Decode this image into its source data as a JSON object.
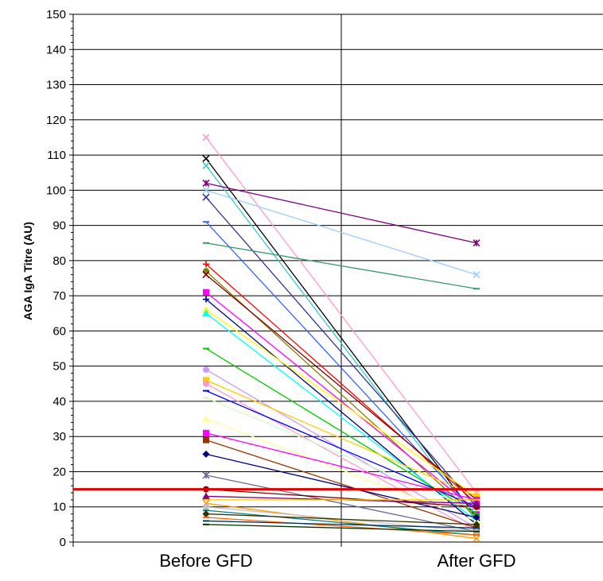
{
  "chart_data": {
    "type": "line",
    "title": "",
    "xlabel": "",
    "ylabel": "AGA IgA Titre (AU)",
    "categories": [
      "Before GFD",
      "After GFD"
    ],
    "ylim": [
      0,
      150
    ],
    "yticks": [
      0,
      10,
      20,
      30,
      40,
      50,
      60,
      70,
      80,
      90,
      100,
      110,
      120,
      130,
      140,
      150
    ],
    "grid": true,
    "legend": "none",
    "threshold": {
      "value": 15,
      "color": "#e00000"
    },
    "series": [
      {
        "values": [
          115,
          14
        ],
        "color": "#ff99cc",
        "marker": "x"
      },
      {
        "values": [
          109,
          7
        ],
        "color": "#000000",
        "marker": "x"
      },
      {
        "values": [
          107,
          6
        ],
        "color": "#33cccc",
        "marker": "x"
      },
      {
        "values": [
          102,
          85
        ],
        "color": "#800080",
        "marker": "star"
      },
      {
        "values": [
          100,
          76
        ],
        "color": "#99ccff",
        "marker": "x"
      },
      {
        "values": [
          98,
          10
        ],
        "color": "#333399",
        "marker": "x"
      },
      {
        "values": [
          91,
          8
        ],
        "color": "#3366ff",
        "marker": "dash"
      },
      {
        "values": [
          85,
          72
        ],
        "color": "#339966",
        "marker": "dash"
      },
      {
        "values": [
          79,
          11
        ],
        "color": "#ff0000",
        "marker": "plus"
      },
      {
        "values": [
          77,
          7
        ],
        "color": "#808000",
        "marker": "circle"
      },
      {
        "values": [
          76,
          12
        ],
        "color": "#800000",
        "marker": "x"
      },
      {
        "values": [
          71,
          9
        ],
        "color": "#ff00ff",
        "marker": "square"
      },
      {
        "values": [
          69,
          5
        ],
        "color": "#000080",
        "marker": "plus"
      },
      {
        "values": [
          66,
          13
        ],
        "color": "#ffff00",
        "marker": "triangle"
      },
      {
        "values": [
          65,
          6
        ],
        "color": "#00ffff",
        "marker": "triangle"
      },
      {
        "values": [
          55,
          8
        ],
        "color": "#00cc00",
        "marker": "dash"
      },
      {
        "values": [
          49,
          4
        ],
        "color": "#cc99ff",
        "marker": "circle"
      },
      {
        "values": [
          46,
          13
        ],
        "color": "#ffcc00",
        "marker": "square"
      },
      {
        "values": [
          45,
          3
        ],
        "color": "#ff99cc",
        "marker": "circle"
      },
      {
        "values": [
          43,
          10
        ],
        "color": "#0000ff",
        "marker": "dash"
      },
      {
        "values": [
          41,
          9
        ],
        "color": "#ccffcc",
        "marker": "dash"
      },
      {
        "values": [
          35,
          6
        ],
        "color": "#ffff99",
        "marker": "triangle"
      },
      {
        "values": [
          31,
          12
        ],
        "color": "#ff00ff",
        "marker": "square"
      },
      {
        "values": [
          29,
          4
        ],
        "color": "#993300",
        "marker": "square"
      },
      {
        "values": [
          25,
          7
        ],
        "color": "#000080",
        "marker": "diamond"
      },
      {
        "values": [
          19,
          3
        ],
        "color": "#666699",
        "marker": "star"
      },
      {
        "values": [
          15,
          10
        ],
        "color": "#800000",
        "marker": "circle"
      },
      {
        "values": [
          13,
          11
        ],
        "color": "#800080",
        "marker": "triangle"
      },
      {
        "values": [
          12,
          12
        ],
        "color": "#ffcc00",
        "marker": "dash"
      },
      {
        "values": [
          11,
          1
        ],
        "color": "#ff9900",
        "marker": "x"
      },
      {
        "values": [
          10,
          3
        ],
        "color": "#c0c0c0",
        "marker": "circle"
      },
      {
        "values": [
          9,
          2
        ],
        "color": "#008080",
        "marker": "dash"
      },
      {
        "values": [
          8,
          5
        ],
        "color": "#333300",
        "marker": "diamond"
      },
      {
        "values": [
          7,
          2
        ],
        "color": "#ff6600",
        "marker": "dash"
      },
      {
        "values": [
          6,
          4
        ],
        "color": "#003366",
        "marker": "dash"
      },
      {
        "values": [
          5,
          3
        ],
        "color": "#003300",
        "marker": "dash"
      }
    ]
  }
}
